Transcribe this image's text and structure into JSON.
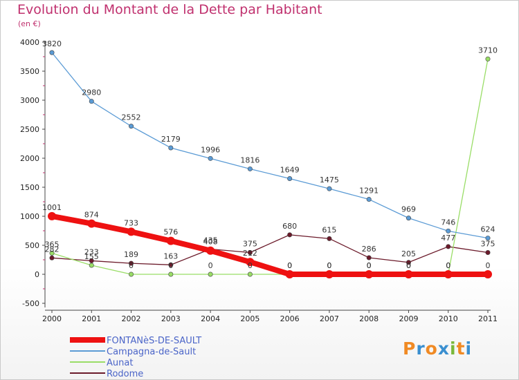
{
  "header": {
    "title": "Evolution du Montant de la Dette par Habitant",
    "unit": "(en €)"
  },
  "brand": {
    "letters": [
      "P",
      "r",
      "o",
      "x",
      "i",
      "t",
      "i"
    ],
    "colors": [
      "#f08a24",
      "#3a8fd0",
      "#f08a24",
      "#3a8fd0",
      "#7ab83a",
      "#f08a24",
      "#3a8fd0"
    ]
  },
  "chart_data": {
    "type": "line",
    "title": "Evolution du Montant de la Dette par Habitant",
    "subtitle": "(en €)",
    "xlabel": "",
    "ylabel": "",
    "x": [
      "2000",
      "2001",
      "2002",
      "2003",
      "2004",
      "2005",
      "2006",
      "2007",
      "2008",
      "2009",
      "2010",
      "2011"
    ],
    "ylim": [
      -500,
      4000
    ],
    "yticks": [
      -500,
      0,
      500,
      1000,
      1500,
      2000,
      2500,
      3000,
      3500,
      4000
    ],
    "grid": false,
    "legend_position": "bottom-left",
    "series": [
      {
        "name": "FONTANèS-DE-SAULT",
        "color": "#ee1111",
        "values": [
          1001,
          874,
          733,
          576,
          408,
          212,
          0,
          0,
          0,
          0,
          0,
          0
        ],
        "labels": [
          "1001",
          "874",
          "733",
          "576",
          "408",
          "212",
          "0",
          "0",
          "0",
          "0",
          "0",
          "0"
        ]
      },
      {
        "name": "Campagna-de-Sault",
        "color": "#5b9bd5",
        "values": [
          3820,
          2980,
          2552,
          2179,
          1996,
          1816,
          1649,
          1475,
          1291,
          969,
          746,
          624
        ],
        "labels": [
          "3820",
          "2980",
          "2552",
          "2179",
          "1996",
          "1816",
          "1649",
          "1475",
          "1291",
          "969",
          "746",
          "624"
        ]
      },
      {
        "name": "Aunat",
        "color": "#99dd66",
        "values": [
          365,
          155,
          0,
          0,
          0,
          0,
          0,
          0,
          0,
          0,
          0,
          3710
        ],
        "labels": [
          "365",
          "155",
          "0",
          "0",
          "0",
          "0",
          "0",
          "0",
          "0",
          "0",
          "0",
          "3710"
        ]
      },
      {
        "name": "Rodome",
        "color": "#6b1a2a",
        "values": [
          282,
          233,
          189,
          163,
          435,
          375,
          680,
          615,
          286,
          205,
          477,
          375
        ],
        "labels": [
          "282",
          "233",
          "189",
          "163",
          "435",
          "375",
          "680",
          "615",
          "286",
          "205",
          "477",
          "375"
        ]
      }
    ]
  }
}
